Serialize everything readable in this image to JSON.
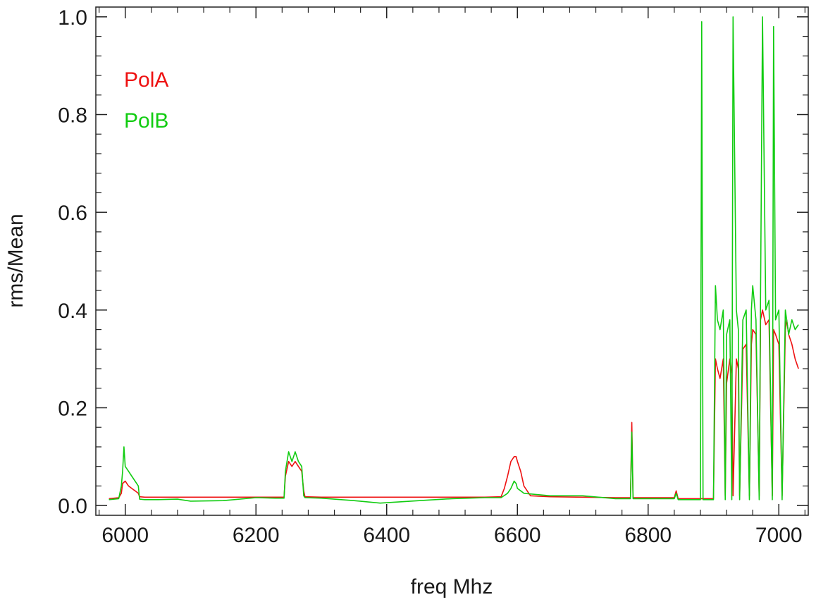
{
  "chart_data": {
    "type": "line",
    "title": "",
    "xlabel": "freq Mhz",
    "ylabel": "rms/Mean",
    "xlim": [
      5955,
      7045
    ],
    "ylim": [
      -0.02,
      1.02
    ],
    "x_ticks": [
      6000,
      6200,
      6400,
      6600,
      6800,
      7000
    ],
    "x_tick_labels": [
      "6000",
      "6200",
      "6400",
      "6600",
      "6800",
      "7000"
    ],
    "y_ticks": [
      0.0,
      0.2,
      0.4,
      0.6,
      0.8,
      1.0
    ],
    "y_tick_labels": [
      "0.0",
      "0.2",
      "0.4",
      "0.6",
      "0.8",
      "1.0"
    ],
    "legend_placement": "top-left",
    "grid": false,
    "series": [
      {
        "name": "PolA",
        "color": "#ee1111",
        "x": [
          5975,
          5990,
          5994,
          5996,
          6000,
          6005,
          6010,
          6015,
          6020,
          6022,
          6030,
          6050,
          6080,
          6100,
          6150,
          6200,
          6230,
          6243,
          6245,
          6250,
          6255,
          6260,
          6265,
          6270,
          6273,
          6275,
          6300,
          6350,
          6400,
          6450,
          6500,
          6550,
          6575,
          6580,
          6585,
          6590,
          6595,
          6598,
          6600,
          6605,
          6610,
          6620,
          6650,
          6700,
          6750,
          6773,
          6775,
          6777,
          6780,
          6800,
          6840,
          6843,
          6846,
          6860,
          6880,
          6900,
          6903,
          6906,
          6910,
          6915,
          6918,
          6920,
          6925,
          6928,
          6930,
          6935,
          6938,
          6940,
          6945,
          6950,
          6955,
          6958,
          6960,
          6965,
          6970,
          6972,
          6975,
          6980,
          6985,
          6990,
          6992,
          6995,
          7000,
          7005,
          7010,
          7012,
          7015,
          7020,
          7025,
          7030
        ],
        "y": [
          0.014,
          0.016,
          0.025,
          0.045,
          0.05,
          0.04,
          0.035,
          0.03,
          0.025,
          0.018,
          0.017,
          0.017,
          0.017,
          0.017,
          0.017,
          0.017,
          0.017,
          0.017,
          0.06,
          0.09,
          0.08,
          0.09,
          0.08,
          0.07,
          0.03,
          0.018,
          0.017,
          0.017,
          0.017,
          0.017,
          0.017,
          0.017,
          0.018,
          0.035,
          0.06,
          0.09,
          0.1,
          0.1,
          0.09,
          0.07,
          0.04,
          0.02,
          0.018,
          0.017,
          0.016,
          0.016,
          0.17,
          0.016,
          0.016,
          0.016,
          0.016,
          0.03,
          0.014,
          0.014,
          0.014,
          0.014,
          0.3,
          0.28,
          0.26,
          0.3,
          0.02,
          0.25,
          0.3,
          0.27,
          0.02,
          0.3,
          0.28,
          0.02,
          0.32,
          0.33,
          0.02,
          0.33,
          0.36,
          0.35,
          0.02,
          0.38,
          0.4,
          0.37,
          0.38,
          0.02,
          0.36,
          0.35,
          0.33,
          0.02,
          0.36,
          0.38,
          0.35,
          0.33,
          0.3,
          0.28
        ]
      },
      {
        "name": "PolB",
        "color": "#11cc11",
        "x": [
          5975,
          5990,
          5994,
          5996,
          5998,
          6000,
          6005,
          6010,
          6015,
          6020,
          6022,
          6030,
          6050,
          6080,
          6100,
          6150,
          6200,
          6230,
          6243,
          6245,
          6250,
          6255,
          6260,
          6265,
          6270,
          6273,
          6275,
          6300,
          6350,
          6390,
          6450,
          6500,
          6550,
          6575,
          6585,
          6590,
          6595,
          6598,
          6600,
          6605,
          6610,
          6650,
          6700,
          6750,
          6773,
          6775,
          6777,
          6780,
          6800,
          6840,
          6843,
          6846,
          6860,
          6870,
          6880,
          6882,
          6884,
          6890,
          6895,
          6900,
          6903,
          6906,
          6910,
          6915,
          6918,
          6920,
          6925,
          6928,
          6930,
          6935,
          6938,
          6940,
          6945,
          6950,
          6955,
          6958,
          6960,
          6965,
          6970,
          6972,
          6975,
          6980,
          6985,
          6990,
          6992,
          6995,
          7000,
          7005,
          7010,
          7012,
          7015,
          7020,
          7025,
          7030
        ],
        "y": [
          0.012,
          0.014,
          0.04,
          0.07,
          0.12,
          0.08,
          0.07,
          0.06,
          0.05,
          0.04,
          0.013,
          0.012,
          0.012,
          0.013,
          0.009,
          0.01,
          0.016,
          0.015,
          0.015,
          0.07,
          0.11,
          0.09,
          0.11,
          0.09,
          0.08,
          0.02,
          0.016,
          0.015,
          0.01,
          0.005,
          0.01,
          0.014,
          0.016,
          0.016,
          0.025,
          0.035,
          0.05,
          0.045,
          0.035,
          0.03,
          0.025,
          0.02,
          0.02,
          0.014,
          0.014,
          0.15,
          0.014,
          0.014,
          0.014,
          0.014,
          0.025,
          0.012,
          0.012,
          0.012,
          0.012,
          0.99,
          0.012,
          0.012,
          0.012,
          0.012,
          0.45,
          0.38,
          0.36,
          0.4,
          0.012,
          0.35,
          0.38,
          0.012,
          1.0,
          0.4,
          0.36,
          0.012,
          0.38,
          0.4,
          0.012,
          0.4,
          0.45,
          0.38,
          0.012,
          0.43,
          1.0,
          0.4,
          0.42,
          0.012,
          0.98,
          0.38,
          0.4,
          0.012,
          0.4,
          0.38,
          0.35,
          0.38,
          0.36,
          0.37
        ]
      }
    ]
  }
}
